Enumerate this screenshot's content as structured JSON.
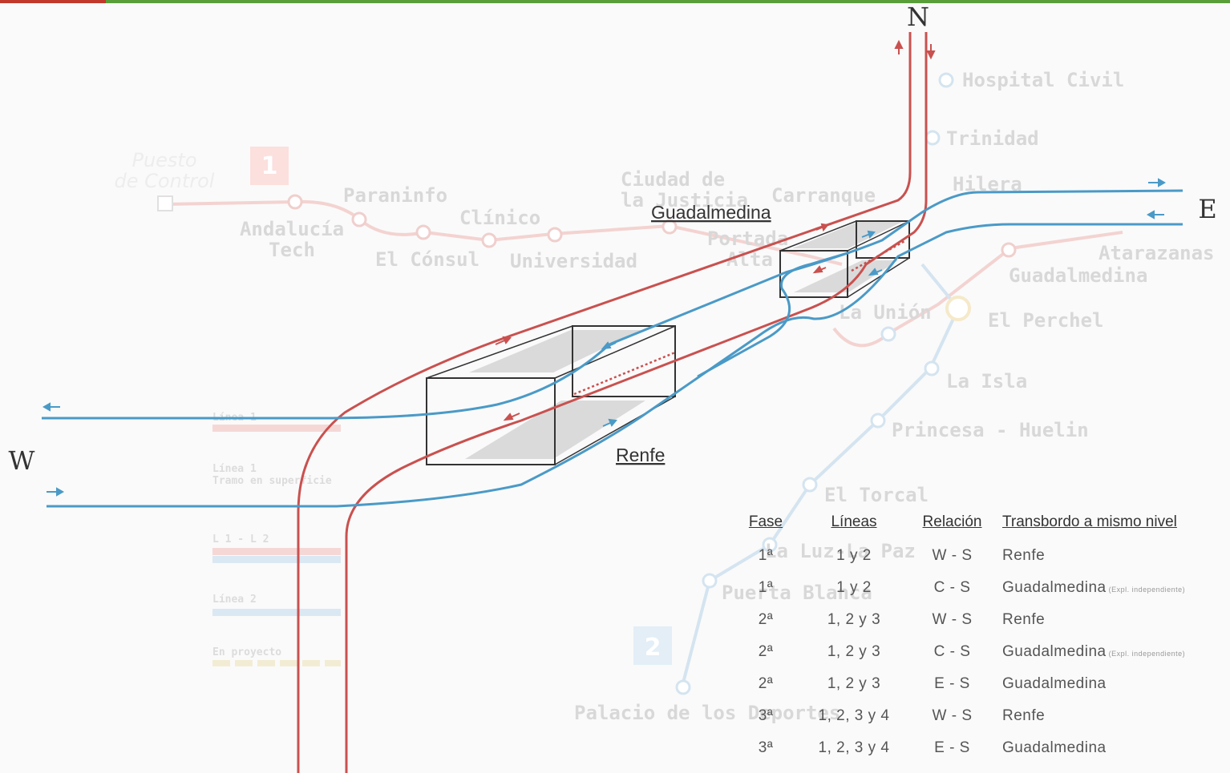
{
  "colors": {
    "top_bar_red": "#c0392b",
    "top_bar_green": "#5a9e3a",
    "line_red": "#c9514f",
    "line_blue": "#4a9ac7",
    "faded_text": "#d8d8d8"
  },
  "compass": {
    "north": "N",
    "east": "E",
    "west": "W"
  },
  "stations": {
    "guadalmedina": "Guadalmedina",
    "renfe": "Renfe"
  },
  "background_map": {
    "line1_badge": "1",
    "line2_badge": "2",
    "puesto_control": [
      "Puesto",
      "de Control"
    ],
    "names": {
      "paraninfo": "Paraninfo",
      "andalucia_tech": [
        "Andalucía",
        "Tech"
      ],
      "clinico": "Clínico",
      "el_consul": "El Cónsul",
      "universidad": "Universidad",
      "ciudad_justicia": [
        "Ciudad de",
        "la Justicia"
      ],
      "carranque": "Carranque",
      "portada_alta": [
        "Portada",
        "Alta"
      ],
      "hospital_civil": "Hospital Civil",
      "trinidad": "Trinidad",
      "hilera": "Hilera",
      "atarazanas": "Atarazanas",
      "guadalmedina": "Guadalmedina",
      "el_perchel": "El Perchel",
      "la_union": "La Unión",
      "la_isla": "La Isla",
      "princesa_huelin": "Princesa - Huelin",
      "el_torcal": "El Torcal",
      "la_luz_la_paz": "La Luz-La Paz",
      "puerta_blanca": "Puerta Blanca",
      "palacio_deportes": "Palacio de los Deportes"
    },
    "legend": {
      "linea1": "Línea 1",
      "linea1_superficie": [
        "Línea 1",
        "Tramo en superficie"
      ],
      "l1_l2": "L 1 - L 2",
      "linea2": "Línea 2",
      "en_proyecto": "En proyecto"
    }
  },
  "table": {
    "headers": {
      "fase": "Fase",
      "lineas": "Líneas",
      "relacion": "Relación",
      "transbordo": "Transbordo a mismo nivel"
    },
    "rows": [
      {
        "fase": "1ª",
        "lineas": "1 y 2",
        "relacion": "W - S",
        "transbordo": "Renfe",
        "note": ""
      },
      {
        "fase": "1ª",
        "lineas": "1 y 2",
        "relacion": "C - S",
        "transbordo": "Guadalmedina",
        "note": "(Expl. independiente)"
      },
      {
        "fase": "2ª",
        "lineas": "1, 2 y 3",
        "relacion": "W - S",
        "transbordo": "Renfe",
        "note": ""
      },
      {
        "fase": "2ª",
        "lineas": "1, 2 y 3",
        "relacion": "C - S",
        "transbordo": "Guadalmedina",
        "note": "(Expl. independiente)"
      },
      {
        "fase": "2ª",
        "lineas": "1, 2 y 3",
        "relacion": "E - S",
        "transbordo": "Guadalmedina",
        "note": ""
      },
      {
        "fase": "3ª",
        "lineas": "1, 2, 3 y 4",
        "relacion": "W - S",
        "transbordo": "Renfe",
        "note": ""
      },
      {
        "fase": "3ª",
        "lineas": "1, 2, 3 y 4",
        "relacion": "E - S",
        "transbordo": "Guadalmedina",
        "note": ""
      }
    ]
  }
}
